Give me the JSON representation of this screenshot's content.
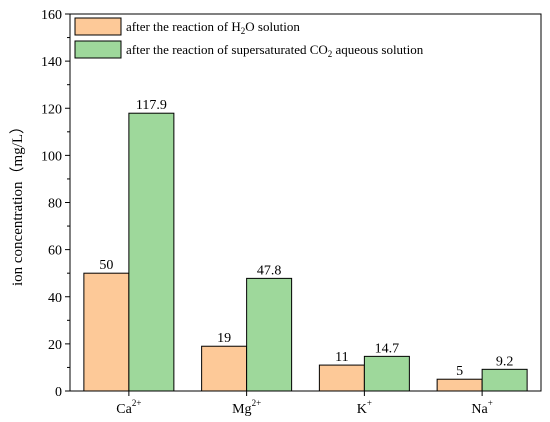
{
  "chart_data": {
    "type": "bar",
    "categories": [
      {
        "base": "Ca",
        "sup": "2+"
      },
      {
        "base": "Mg",
        "sup": "2+"
      },
      {
        "base": "K",
        "sup": "+"
      },
      {
        "base": "Na",
        "sup": "+"
      }
    ],
    "series": [
      {
        "name_parts": [
          {
            "t": "after the reaction of H"
          },
          {
            "t": "2",
            "sub": true
          },
          {
            "t": "O solution"
          }
        ],
        "color": "#FDC998",
        "values": [
          50,
          19,
          11,
          5
        ],
        "labels": [
          "50",
          "19",
          "11",
          "5"
        ]
      },
      {
        "name_parts": [
          {
            "t": "after the reaction of supersaturated CO"
          },
          {
            "t": "2",
            "sub": true
          },
          {
            "t": " aqueous solution"
          }
        ],
        "color": "#9ED89B",
        "values": [
          117.9,
          47.8,
          14.7,
          9.2
        ],
        "labels": [
          "117.9",
          "47.8",
          "14.7",
          "9.2"
        ]
      }
    ],
    "ylabel": "ion concentration（mg/L）",
    "xlabel": "",
    "ylim": [
      0,
      160
    ],
    "yticks": [
      0,
      20,
      40,
      60,
      80,
      100,
      120,
      140,
      160
    ],
    "grid": false,
    "legend_position": "top-left"
  }
}
